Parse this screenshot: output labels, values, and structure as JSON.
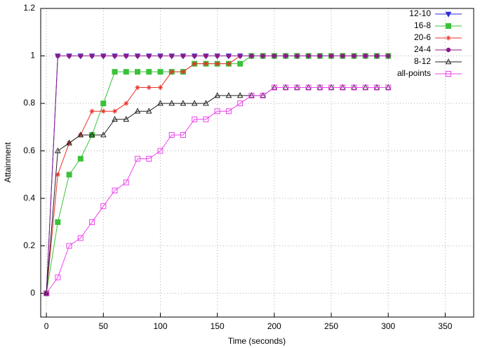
{
  "chart_data": {
    "type": "line",
    "x_label": "Time (seconds)",
    "y_label": "Attainment",
    "xlim": [
      -5,
      375
    ],
    "ylim": [
      -0.1,
      1.2
    ],
    "xticks": [
      0,
      50,
      100,
      150,
      200,
      250,
      300,
      350
    ],
    "yticks": [
      0,
      0.2,
      0.4,
      0.6,
      0.8,
      1,
      1.2
    ],
    "grid": true,
    "legend": "top-right",
    "x": [
      0,
      10,
      20,
      30,
      40,
      50,
      60,
      70,
      80,
      90,
      100,
      110,
      120,
      130,
      140,
      150,
      160,
      170,
      180,
      190,
      200,
      210,
      220,
      230,
      240,
      250,
      260,
      270,
      280,
      290,
      300
    ],
    "series": [
      {
        "name": "12-10",
        "color": "#2a2ae0",
        "marker": "triangle-down",
        "values": [
          0,
          1,
          1,
          1,
          1,
          1,
          1,
          1,
          1,
          1,
          1,
          1,
          1,
          1,
          1,
          1,
          1,
          1,
          1,
          1,
          1,
          1,
          1,
          1,
          1,
          1,
          1,
          1,
          1,
          1,
          1
        ]
      },
      {
        "name": "16-8",
        "color": "#3ac23a",
        "marker": "square-filled",
        "values": [
          0,
          0.3,
          0.5,
          0.567,
          0.667,
          0.8,
          0.933,
          0.933,
          0.933,
          0.933,
          0.933,
          0.933,
          0.933,
          0.967,
          0.967,
          0.967,
          0.967,
          0.967,
          1,
          1,
          1,
          1,
          1,
          1,
          1,
          1,
          1,
          1,
          1,
          1,
          1
        ]
      },
      {
        "name": "20-6",
        "color": "#e8322a",
        "marker": "star",
        "values": [
          0,
          0.5,
          0.633,
          0.667,
          0.767,
          0.767,
          0.767,
          0.8,
          0.867,
          0.867,
          0.867,
          0.933,
          0.933,
          0.967,
          0.967,
          0.967,
          0.967,
          1,
          1,
          1,
          1,
          1,
          1,
          1,
          1,
          1,
          1,
          1,
          1,
          1,
          1
        ]
      },
      {
        "name": "24-4",
        "color": "#8a1a8a",
        "marker": "circle",
        "values": [
          0,
          1,
          1,
          1,
          1,
          1,
          1,
          1,
          1,
          1,
          1,
          1,
          1,
          1,
          1,
          1,
          1,
          1,
          1,
          1,
          1,
          1,
          1,
          1,
          1,
          1,
          1,
          1,
          1,
          1,
          1
        ]
      },
      {
        "name": "8-12",
        "color": "#222222",
        "marker": "triangle",
        "values": [
          0,
          0.6,
          0.633,
          0.667,
          0.667,
          0.667,
          0.733,
          0.733,
          0.767,
          0.767,
          0.8,
          0.8,
          0.8,
          0.8,
          0.8,
          0.833,
          0.833,
          0.833,
          0.833,
          0.833,
          0.867,
          0.867,
          0.867,
          0.867,
          0.867,
          0.867,
          0.867,
          0.867,
          0.867,
          0.867,
          0.867
        ]
      },
      {
        "name": "all-points",
        "color": "#ee44ee",
        "marker": "square-open",
        "values": [
          0,
          0.067,
          0.2,
          0.233,
          0.3,
          0.367,
          0.433,
          0.467,
          0.567,
          0.567,
          0.6,
          0.667,
          0.667,
          0.733,
          0.733,
          0.767,
          0.767,
          0.8,
          0.833,
          0.833,
          0.867,
          0.867,
          0.867,
          0.867,
          0.867,
          0.867,
          0.867,
          0.867,
          0.867,
          0.867,
          0.867
        ]
      }
    ]
  }
}
